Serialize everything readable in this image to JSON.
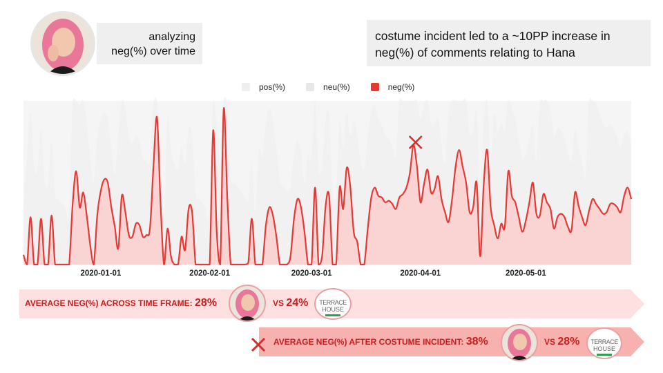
{
  "header": {
    "title_line1": "analyzing",
    "title_line2": "neg(%) over time",
    "note": "costume incident led to a ~10PP increase in neg(%) of comments relating to Hana"
  },
  "colors": {
    "neg": "#e53935",
    "neg_fill": "#fad4d2",
    "neu": "#ededed",
    "pos": "#f5f5f5",
    "banner1": "#fde0df",
    "banner2": "#f7b1ae",
    "accent_text": "#c81e1e"
  },
  "icons": {
    "incident_marker": "x-mark-icon",
    "subject_photo": "avatar-photo",
    "show_logo": "terrace-house-logo"
  },
  "chart_data": {
    "type": "area",
    "legend": [
      "pos(%)",
      "neu(%)",
      "neg(%)"
    ],
    "legend_position": "top",
    "x_ticks": [
      "2020-01-01",
      "2020-02-01",
      "2020-03-01",
      "2020-04-01",
      "2020-05-01"
    ],
    "x_range": [
      "2019-12-10",
      "2020-05-31"
    ],
    "ylim": [
      0,
      100
    ],
    "grid": false,
    "incident_date": "2020-03-31",
    "series": [
      {
        "name": "neg(%)",
        "points": [
          [
            "2019-12-10",
            6
          ],
          [
            "2019-12-11",
            0
          ],
          [
            "2019-12-12",
            29
          ],
          [
            "2019-12-13",
            0
          ],
          [
            "2019-12-14",
            0
          ],
          [
            "2019-12-15",
            28
          ],
          [
            "2019-12-16",
            0
          ],
          [
            "2019-12-17",
            0
          ],
          [
            "2019-12-18",
            30
          ],
          [
            "2019-12-19",
            0
          ],
          [
            "2019-12-20",
            0
          ],
          [
            "2019-12-21",
            0
          ],
          [
            "2019-12-22",
            0
          ],
          [
            "2019-12-23",
            0
          ],
          [
            "2019-12-24",
            37
          ],
          [
            "2019-12-25",
            57
          ],
          [
            "2019-12-26",
            35
          ],
          [
            "2019-12-27",
            44
          ],
          [
            "2019-12-28",
            30
          ],
          [
            "2019-12-29",
            12
          ],
          [
            "2019-12-30",
            0
          ],
          [
            "2019-12-31",
            30
          ],
          [
            "2020-01-01",
            45
          ],
          [
            "2020-01-02",
            52
          ],
          [
            "2020-01-03",
            50
          ],
          [
            "2020-01-04",
            35
          ],
          [
            "2020-01-05",
            23
          ],
          [
            "2020-01-06",
            10
          ],
          [
            "2020-01-07",
            42
          ],
          [
            "2020-01-08",
            32
          ],
          [
            "2020-01-09",
            18
          ],
          [
            "2020-01-10",
            17
          ],
          [
            "2020-01-11",
            25
          ],
          [
            "2020-01-12",
            24
          ],
          [
            "2020-01-13",
            17
          ],
          [
            "2020-01-14",
            18
          ],
          [
            "2020-01-15",
            22
          ],
          [
            "2020-01-16",
            60
          ],
          [
            "2020-01-17",
            90
          ],
          [
            "2020-01-18",
            38
          ],
          [
            "2020-01-19",
            0
          ],
          [
            "2020-01-20",
            22
          ],
          [
            "2020-01-21",
            5
          ],
          [
            "2020-01-22",
            0
          ],
          [
            "2020-01-23",
            0
          ],
          [
            "2020-01-24",
            17
          ],
          [
            "2020-01-25",
            9
          ],
          [
            "2020-01-26",
            34
          ],
          [
            "2020-01-27",
            32
          ],
          [
            "2020-01-28",
            0
          ],
          [
            "2020-01-29",
            0
          ],
          [
            "2020-01-30",
            0
          ],
          [
            "2020-01-31",
            0
          ],
          [
            "2020-02-01",
            0
          ],
          [
            "2020-02-02",
            82
          ],
          [
            "2020-02-03",
            20
          ],
          [
            "2020-02-04",
            0
          ],
          [
            "2020-02-05",
            95
          ],
          [
            "2020-02-06",
            42
          ],
          [
            "2020-02-07",
            0
          ],
          [
            "2020-02-08",
            0
          ],
          [
            "2020-02-09",
            0
          ],
          [
            "2020-02-10",
            0
          ],
          [
            "2020-02-11",
            0
          ],
          [
            "2020-02-12",
            1
          ],
          [
            "2020-02-13",
            28
          ],
          [
            "2020-02-14",
            0
          ],
          [
            "2020-02-15",
            0
          ],
          [
            "2020-02-16",
            0
          ],
          [
            "2020-02-17",
            24
          ],
          [
            "2020-02-18",
            35
          ],
          [
            "2020-02-19",
            30
          ],
          [
            "2020-02-20",
            17
          ],
          [
            "2020-02-21",
            0
          ],
          [
            "2020-02-22",
            0
          ],
          [
            "2020-02-23",
            0
          ],
          [
            "2020-02-24",
            5
          ],
          [
            "2020-02-25",
            28
          ],
          [
            "2020-02-26",
            40
          ],
          [
            "2020-02-27",
            35
          ],
          [
            "2020-02-28",
            20
          ],
          [
            "2020-02-29",
            0
          ],
          [
            "2020-03-01",
            0
          ],
          [
            "2020-03-02",
            47
          ],
          [
            "2020-03-03",
            0
          ],
          [
            "2020-03-04",
            5
          ],
          [
            "2020-03-05",
            36
          ],
          [
            "2020-03-06",
            42
          ],
          [
            "2020-03-07",
            0
          ],
          [
            "2020-03-08",
            0
          ],
          [
            "2020-03-09",
            47
          ],
          [
            "2020-03-10",
            34
          ],
          [
            "2020-03-11",
            59
          ],
          [
            "2020-03-12",
            48
          ],
          [
            "2020-03-13",
            20
          ],
          [
            "2020-03-14",
            14
          ],
          [
            "2020-03-15",
            0
          ],
          [
            "2020-03-16",
            0
          ],
          [
            "2020-03-17",
            22
          ],
          [
            "2020-03-18",
            41
          ],
          [
            "2020-03-19",
            47
          ],
          [
            "2020-03-20",
            42
          ],
          [
            "2020-03-21",
            41
          ],
          [
            "2020-03-22",
            38
          ],
          [
            "2020-03-23",
            39
          ],
          [
            "2020-03-24",
            37
          ],
          [
            "2020-03-25",
            34
          ],
          [
            "2020-03-26",
            41
          ],
          [
            "2020-03-27",
            43
          ],
          [
            "2020-03-28",
            47
          ],
          [
            "2020-03-29",
            56
          ],
          [
            "2020-03-30",
            73
          ],
          [
            "2020-03-31",
            60
          ],
          [
            "2020-04-01",
            38
          ],
          [
            "2020-04-02",
            49
          ],
          [
            "2020-04-03",
            58
          ],
          [
            "2020-04-04",
            44
          ],
          [
            "2020-04-05",
            46
          ],
          [
            "2020-04-06",
            54
          ],
          [
            "2020-04-07",
            40
          ],
          [
            "2020-04-08",
            32
          ],
          [
            "2020-04-09",
            26
          ],
          [
            "2020-04-10",
            40
          ],
          [
            "2020-04-11",
            60
          ],
          [
            "2020-04-12",
            70
          ],
          [
            "2020-04-13",
            60
          ],
          [
            "2020-04-14",
            50
          ],
          [
            "2020-04-15",
            32
          ],
          [
            "2020-04-16",
            35
          ],
          [
            "2020-04-17",
            50
          ],
          [
            "2020-04-18",
            5
          ],
          [
            "2020-04-19",
            49
          ],
          [
            "2020-04-20",
            70
          ],
          [
            "2020-04-21",
            35
          ],
          [
            "2020-04-22",
            24
          ],
          [
            "2020-04-23",
            16
          ],
          [
            "2020-04-24",
            25
          ],
          [
            "2020-04-25",
            23
          ],
          [
            "2020-04-26",
            57
          ],
          [
            "2020-04-27",
            42
          ],
          [
            "2020-04-28",
            38
          ],
          [
            "2020-04-29",
            29
          ],
          [
            "2020-04-30",
            20
          ],
          [
            "2020-05-01",
            27
          ],
          [
            "2020-05-02",
            38
          ],
          [
            "2020-05-03",
            50
          ],
          [
            "2020-05-04",
            31
          ],
          [
            "2020-05-05",
            30
          ],
          [
            "2020-05-06",
            43
          ],
          [
            "2020-05-07",
            38
          ],
          [
            "2020-05-08",
            34
          ],
          [
            "2020-05-09",
            22
          ],
          [
            "2020-05-10",
            29
          ],
          [
            "2020-05-11",
            31
          ],
          [
            "2020-05-12",
            29
          ],
          [
            "2020-05-13",
            23
          ],
          [
            "2020-05-14",
            21
          ],
          [
            "2020-05-15",
            44
          ],
          [
            "2020-05-16",
            36
          ],
          [
            "2020-05-17",
            29
          ],
          [
            "2020-05-18",
            24
          ],
          [
            "2020-05-19",
            33
          ],
          [
            "2020-05-20",
            40
          ],
          [
            "2020-05-21",
            37
          ],
          [
            "2020-05-22",
            34
          ],
          [
            "2020-05-23",
            31
          ],
          [
            "2020-05-24",
            32
          ],
          [
            "2020-05-25",
            37
          ],
          [
            "2020-05-26",
            37
          ],
          [
            "2020-05-27",
            35
          ],
          [
            "2020-05-28",
            32
          ],
          [
            "2020-05-29",
            42
          ],
          [
            "2020-05-30",
            47
          ],
          [
            "2020-05-31",
            40
          ]
        ]
      }
    ],
    "annotations": [
      {
        "label": "AVERAGE NEG(%) ACROSS TIME FRAME:",
        "value": "28%",
        "compare_prefix": "VS",
        "compare_value": "24%"
      },
      {
        "label": "AVERAGE NEG(%) AFTER COSTUME INCIDENT:",
        "value": "38%",
        "compare_prefix": "VS",
        "compare_value": "28%"
      }
    ]
  }
}
